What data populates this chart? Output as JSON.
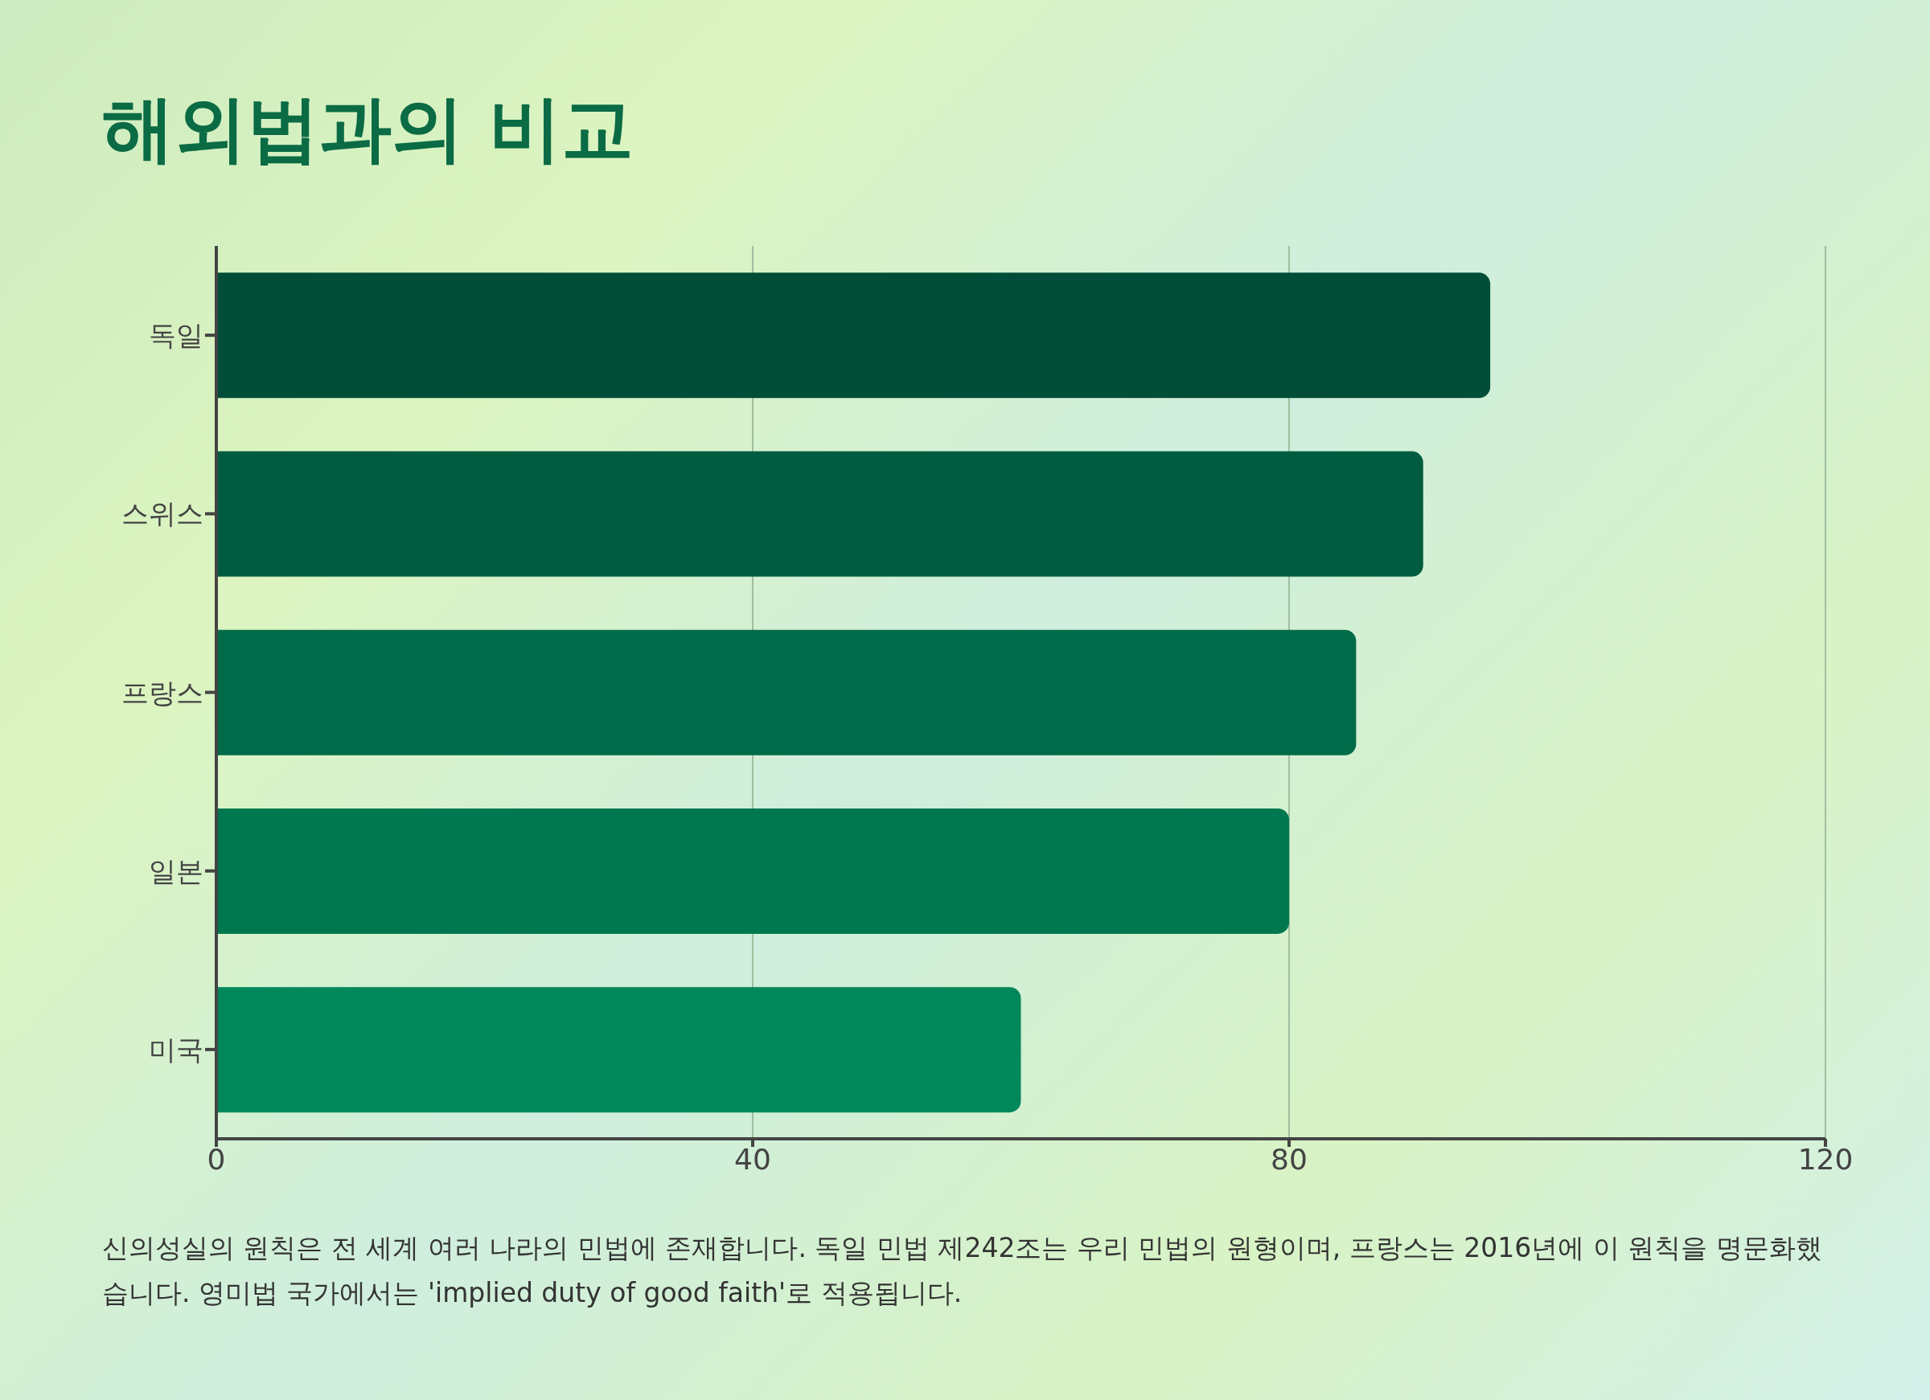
{
  "chart_data": {
    "type": "bar",
    "orientation": "horizontal",
    "title": "해외법과의 비교",
    "categories": [
      "독일",
      "스위스",
      "프랑스",
      "일본",
      "미국"
    ],
    "values": [
      95,
      90,
      85,
      80,
      60
    ],
    "colors": [
      "#004d38",
      "#005c40",
      "#006b48",
      "#00784f",
      "#00875a"
    ],
    "xlim": [
      0,
      120
    ],
    "xticks": [
      0,
      40,
      80,
      120
    ],
    "grid": "x",
    "annotations": [
      "신의성실의 원칙은 전 세계 여러 나라의 민법에 존재합니다. 독일 민법 제242조는 우리 민법의 원형이며, 프랑스는 2016년에 이 원칙을 명문화했습니다. 영미법 국가에서는 'implied duty of good faith'로 적용됩니다."
    ]
  }
}
